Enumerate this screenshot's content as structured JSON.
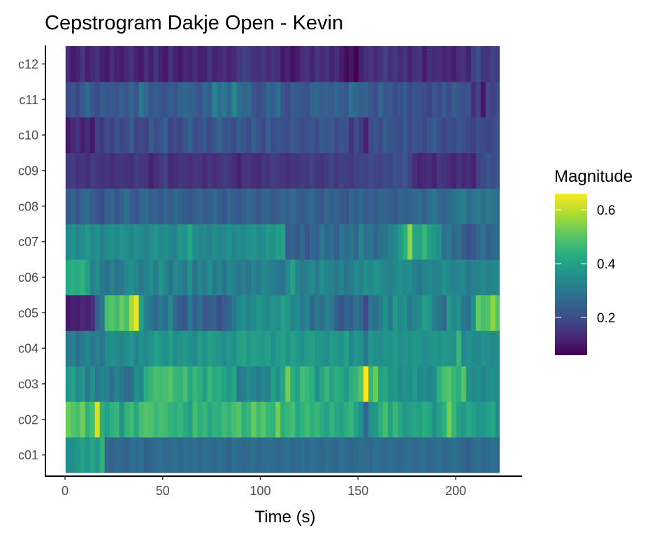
{
  "chart_data": {
    "type": "heatmap",
    "title": "Cepstrogram Dakje Open - Kevin",
    "xlabel": "Time (s)",
    "ylabel": "",
    "xlim": [
      -10,
      234
    ],
    "x_ticks": [
      0,
      50,
      100,
      150,
      200
    ],
    "data_x_range": [
      0.3,
      222.3
    ],
    "frame_step": 2.5,
    "rows": [
      "c01",
      "c02",
      "c03",
      "c04",
      "c05",
      "c06",
      "c07",
      "c08",
      "c09",
      "c10",
      "c11",
      "c12"
    ],
    "grid": false,
    "legend": {
      "title": "Magnitude",
      "position": "right",
      "ticks": [
        0.2,
        0.4,
        0.6
      ],
      "range": [
        0.06,
        0.66
      ],
      "colormap": "viridis"
    },
    "values": {
      "c01": [
        0.35,
        0.36,
        0.38,
        0.4,
        0.37,
        0.42,
        0.38,
        0.45,
        0.26,
        0.25,
        0.27,
        0.26,
        0.25,
        0.28,
        0.27,
        0.28,
        0.25,
        0.26,
        0.27,
        0.28,
        0.26,
        0.27,
        0.28,
        0.26,
        0.28,
        0.27,
        0.28,
        0.26,
        0.28,
        0.27,
        0.26,
        0.28,
        0.27,
        0.25,
        0.28,
        0.27,
        0.26,
        0.27,
        0.28,
        0.26,
        0.27,
        0.28,
        0.27,
        0.26,
        0.27,
        0.28,
        0.26,
        0.27,
        0.28,
        0.26,
        0.28,
        0.27,
        0.26,
        0.28,
        0.27,
        0.26,
        0.28,
        0.27,
        0.26,
        0.27,
        0.28,
        0.27,
        0.26,
        0.28,
        0.27,
        0.26,
        0.28,
        0.27,
        0.26,
        0.27,
        0.28,
        0.26,
        0.27,
        0.28,
        0.26,
        0.27,
        0.28,
        0.26,
        0.27,
        0.28,
        0.27,
        0.26,
        0.24,
        0.27,
        0.28,
        0.26,
        0.27,
        0.28,
        0.27
      ],
      "c02": [
        0.52,
        0.5,
        0.48,
        0.53,
        0.45,
        0.48,
        0.62,
        0.44,
        0.4,
        0.44,
        0.46,
        0.36,
        0.45,
        0.47,
        0.42,
        0.48,
        0.5,
        0.49,
        0.46,
        0.48,
        0.47,
        0.45,
        0.44,
        0.46,
        0.43,
        0.4,
        0.48,
        0.44,
        0.46,
        0.42,
        0.45,
        0.44,
        0.47,
        0.45,
        0.48,
        0.5,
        0.44,
        0.46,
        0.52,
        0.47,
        0.5,
        0.46,
        0.45,
        0.53,
        0.44,
        0.46,
        0.48,
        0.42,
        0.45,
        0.47,
        0.44,
        0.46,
        0.43,
        0.4,
        0.45,
        0.42,
        0.4,
        0.44,
        0.46,
        0.4,
        0.36,
        0.26,
        0.36,
        0.38,
        0.44,
        0.48,
        0.4,
        0.46,
        0.42,
        0.38,
        0.4,
        0.42,
        0.4,
        0.44,
        0.42,
        0.36,
        0.4,
        0.44,
        0.53,
        0.46,
        0.4,
        0.38,
        0.42,
        0.4,
        0.37,
        0.38,
        0.4,
        0.42,
        0.35
      ],
      "c03": [
        0.38,
        0.4,
        0.34,
        0.38,
        0.3,
        0.36,
        0.3,
        0.33,
        0.32,
        0.28,
        0.32,
        0.3,
        0.27,
        0.28,
        0.36,
        0.34,
        0.44,
        0.46,
        0.48,
        0.47,
        0.48,
        0.5,
        0.46,
        0.45,
        0.48,
        0.42,
        0.46,
        0.44,
        0.4,
        0.46,
        0.42,
        0.44,
        0.4,
        0.38,
        0.42,
        0.3,
        0.32,
        0.35,
        0.33,
        0.3,
        0.34,
        0.32,
        0.4,
        0.36,
        0.42,
        0.53,
        0.44,
        0.4,
        0.48,
        0.46,
        0.44,
        0.36,
        0.42,
        0.46,
        0.4,
        0.44,
        0.42,
        0.38,
        0.44,
        0.46,
        0.5,
        0.66,
        0.46,
        0.52,
        0.4,
        0.42,
        0.36,
        0.38,
        0.34,
        0.36,
        0.35,
        0.38,
        0.34,
        0.36,
        0.33,
        0.35,
        0.44,
        0.48,
        0.5,
        0.46,
        0.44,
        0.5,
        0.36,
        0.34,
        0.36,
        0.33,
        0.35,
        0.36,
        0.35
      ],
      "c04": [
        0.3,
        0.32,
        0.28,
        0.31,
        0.33,
        0.3,
        0.32,
        0.29,
        0.35,
        0.36,
        0.34,
        0.33,
        0.35,
        0.38,
        0.33,
        0.36,
        0.34,
        0.37,
        0.4,
        0.38,
        0.36,
        0.39,
        0.35,
        0.37,
        0.38,
        0.36,
        0.34,
        0.39,
        0.36,
        0.4,
        0.38,
        0.37,
        0.35,
        0.38,
        0.36,
        0.4,
        0.41,
        0.38,
        0.4,
        0.39,
        0.38,
        0.4,
        0.36,
        0.39,
        0.41,
        0.37,
        0.4,
        0.38,
        0.36,
        0.39,
        0.4,
        0.38,
        0.37,
        0.35,
        0.39,
        0.38,
        0.36,
        0.4,
        0.33,
        0.37,
        0.36,
        0.3,
        0.38,
        0.36,
        0.35,
        0.37,
        0.36,
        0.38,
        0.35,
        0.37,
        0.36,
        0.38,
        0.37,
        0.35,
        0.36,
        0.38,
        0.36,
        0.38,
        0.37,
        0.36,
        0.46,
        0.34,
        0.36,
        0.35,
        0.34,
        0.36,
        0.35,
        0.34,
        0.35
      ],
      "c05": [
        0.1,
        0.12,
        0.11,
        0.13,
        0.12,
        0.14,
        0.25,
        0.3,
        0.48,
        0.5,
        0.47,
        0.52,
        0.48,
        0.58,
        0.64,
        0.4,
        0.32,
        0.3,
        0.26,
        0.3,
        0.28,
        0.34,
        0.26,
        0.24,
        0.22,
        0.3,
        0.24,
        0.28,
        0.22,
        0.24,
        0.25,
        0.2,
        0.24,
        0.26,
        0.3,
        0.34,
        0.36,
        0.33,
        0.35,
        0.38,
        0.36,
        0.34,
        0.37,
        0.35,
        0.4,
        0.38,
        0.33,
        0.35,
        0.3,
        0.33,
        0.26,
        0.3,
        0.28,
        0.32,
        0.3,
        0.25,
        0.22,
        0.26,
        0.24,
        0.28,
        0.26,
        0.2,
        0.3,
        0.28,
        0.32,
        0.36,
        0.3,
        0.38,
        0.34,
        0.36,
        0.3,
        0.33,
        0.35,
        0.4,
        0.38,
        0.32,
        0.3,
        0.27,
        0.38,
        0.34,
        0.36,
        0.3,
        0.28,
        0.36,
        0.52,
        0.48,
        0.5,
        0.56,
        0.5
      ],
      "c06": [
        0.42,
        0.44,
        0.43,
        0.45,
        0.4,
        0.32,
        0.35,
        0.3,
        0.28,
        0.32,
        0.29,
        0.3,
        0.34,
        0.36,
        0.33,
        0.3,
        0.32,
        0.35,
        0.31,
        0.37,
        0.33,
        0.29,
        0.34,
        0.32,
        0.3,
        0.36,
        0.28,
        0.33,
        0.31,
        0.35,
        0.3,
        0.33,
        0.29,
        0.34,
        0.32,
        0.3,
        0.31,
        0.29,
        0.33,
        0.3,
        0.34,
        0.32,
        0.31,
        0.3,
        0.28,
        0.34,
        0.41,
        0.33,
        0.3,
        0.32,
        0.34,
        0.31,
        0.36,
        0.33,
        0.32,
        0.3,
        0.33,
        0.29,
        0.31,
        0.34,
        0.32,
        0.36,
        0.34,
        0.37,
        0.35,
        0.33,
        0.32,
        0.34,
        0.36,
        0.34,
        0.35,
        0.32,
        0.3,
        0.33,
        0.34,
        0.32,
        0.33,
        0.36,
        0.34,
        0.32,
        0.33,
        0.34,
        0.3,
        0.32,
        0.33,
        0.34,
        0.32,
        0.33,
        0.34
      ],
      "c07": [
        0.34,
        0.36,
        0.33,
        0.35,
        0.38,
        0.34,
        0.36,
        0.32,
        0.35,
        0.36,
        0.34,
        0.37,
        0.35,
        0.33,
        0.36,
        0.34,
        0.32,
        0.35,
        0.37,
        0.34,
        0.36,
        0.33,
        0.32,
        0.38,
        0.36,
        0.42,
        0.35,
        0.33,
        0.34,
        0.32,
        0.35,
        0.33,
        0.34,
        0.36,
        0.33,
        0.35,
        0.34,
        0.36,
        0.37,
        0.34,
        0.35,
        0.38,
        0.36,
        0.39,
        0.4,
        0.24,
        0.26,
        0.23,
        0.27,
        0.22,
        0.26,
        0.25,
        0.3,
        0.26,
        0.28,
        0.24,
        0.29,
        0.27,
        0.3,
        0.26,
        0.33,
        0.28,
        0.3,
        0.26,
        0.28,
        0.3,
        0.32,
        0.34,
        0.38,
        0.44,
        0.56,
        0.42,
        0.4,
        0.46,
        0.4,
        0.38,
        0.36,
        0.28,
        0.3,
        0.26,
        0.28,
        0.24,
        0.21,
        0.22,
        0.26,
        0.28,
        0.24,
        0.26,
        0.27
      ],
      "c08": [
        0.23,
        0.25,
        0.22,
        0.26,
        0.27,
        0.24,
        0.22,
        0.2,
        0.24,
        0.26,
        0.22,
        0.25,
        0.28,
        0.24,
        0.22,
        0.26,
        0.27,
        0.24,
        0.25,
        0.23,
        0.26,
        0.24,
        0.27,
        0.25,
        0.23,
        0.22,
        0.24,
        0.26,
        0.23,
        0.25,
        0.27,
        0.24,
        0.22,
        0.26,
        0.24,
        0.23,
        0.25,
        0.27,
        0.24,
        0.22,
        0.26,
        0.25,
        0.23,
        0.24,
        0.26,
        0.25,
        0.27,
        0.24,
        0.23,
        0.25,
        0.27,
        0.24,
        0.22,
        0.26,
        0.24,
        0.25,
        0.23,
        0.22,
        0.26,
        0.24,
        0.27,
        0.23,
        0.25,
        0.24,
        0.26,
        0.25,
        0.24,
        0.23,
        0.26,
        0.24,
        0.25,
        0.26,
        0.27,
        0.24,
        0.28,
        0.3,
        0.26,
        0.25,
        0.27,
        0.28,
        0.3,
        0.32,
        0.27,
        0.29,
        0.31,
        0.28,
        0.3,
        0.29,
        0.28
      ],
      "c09": [
        0.16,
        0.17,
        0.15,
        0.16,
        0.14,
        0.17,
        0.16,
        0.15,
        0.16,
        0.14,
        0.15,
        0.16,
        0.15,
        0.14,
        0.17,
        0.16,
        0.15,
        0.12,
        0.14,
        0.16,
        0.18,
        0.13,
        0.14,
        0.16,
        0.15,
        0.14,
        0.16,
        0.15,
        0.13,
        0.16,
        0.14,
        0.15,
        0.17,
        0.16,
        0.14,
        0.12,
        0.15,
        0.16,
        0.14,
        0.13,
        0.16,
        0.15,
        0.17,
        0.16,
        0.15,
        0.14,
        0.16,
        0.15,
        0.17,
        0.16,
        0.18,
        0.16,
        0.15,
        0.17,
        0.19,
        0.16,
        0.18,
        0.17,
        0.16,
        0.18,
        0.19,
        0.18,
        0.2,
        0.19,
        0.18,
        0.2,
        0.19,
        0.21,
        0.2,
        0.22,
        0.18,
        0.14,
        0.12,
        0.13,
        0.14,
        0.12,
        0.16,
        0.15,
        0.14,
        0.12,
        0.15,
        0.13,
        0.14,
        0.12,
        0.18,
        0.2,
        0.22,
        0.2,
        0.22
      ],
      "c10": [
        0.1,
        0.13,
        0.15,
        0.11,
        0.14,
        0.1,
        0.18,
        0.16,
        0.2,
        0.18,
        0.22,
        0.19,
        0.2,
        0.24,
        0.18,
        0.2,
        0.18,
        0.24,
        0.2,
        0.22,
        0.25,
        0.18,
        0.2,
        0.19,
        0.22,
        0.25,
        0.2,
        0.21,
        0.23,
        0.2,
        0.22,
        0.26,
        0.21,
        0.22,
        0.2,
        0.24,
        0.22,
        0.2,
        0.25,
        0.22,
        0.19,
        0.24,
        0.2,
        0.22,
        0.21,
        0.2,
        0.23,
        0.22,
        0.2,
        0.21,
        0.22,
        0.2,
        0.24,
        0.22,
        0.23,
        0.2,
        0.22,
        0.21,
        0.15,
        0.2,
        0.17,
        0.12,
        0.2,
        0.22,
        0.2,
        0.24,
        0.22,
        0.21,
        0.2,
        0.23,
        0.2,
        0.22,
        0.21,
        0.19,
        0.22,
        0.24,
        0.21,
        0.19,
        0.21,
        0.2,
        0.22,
        0.21,
        0.2,
        0.18,
        0.21,
        0.2,
        0.19,
        0.2,
        0.21
      ],
      "c11": [
        0.2,
        0.22,
        0.19,
        0.23,
        0.27,
        0.22,
        0.2,
        0.24,
        0.22,
        0.23,
        0.21,
        0.24,
        0.22,
        0.26,
        0.22,
        0.3,
        0.26,
        0.22,
        0.24,
        0.22,
        0.21,
        0.24,
        0.22,
        0.25,
        0.26,
        0.25,
        0.24,
        0.22,
        0.26,
        0.24,
        0.33,
        0.28,
        0.3,
        0.26,
        0.34,
        0.28,
        0.26,
        0.27,
        0.22,
        0.2,
        0.22,
        0.26,
        0.24,
        0.28,
        0.22,
        0.2,
        0.24,
        0.23,
        0.22,
        0.21,
        0.25,
        0.26,
        0.24,
        0.25,
        0.23,
        0.26,
        0.24,
        0.22,
        0.28,
        0.26,
        0.24,
        0.25,
        0.22,
        0.2,
        0.26,
        0.22,
        0.23,
        0.2,
        0.22,
        0.23,
        0.2,
        0.22,
        0.21,
        0.2,
        0.18,
        0.22,
        0.2,
        0.23,
        0.2,
        0.24,
        0.22,
        0.21,
        0.22,
        0.14,
        0.18,
        0.1,
        0.2,
        0.18,
        0.2
      ],
      "c12": [
        0.14,
        0.1,
        0.12,
        0.16,
        0.11,
        0.13,
        0.15,
        0.12,
        0.1,
        0.14,
        0.12,
        0.11,
        0.13,
        0.15,
        0.12,
        0.1,
        0.14,
        0.11,
        0.16,
        0.12,
        0.1,
        0.15,
        0.12,
        0.1,
        0.13,
        0.12,
        0.14,
        0.11,
        0.12,
        0.16,
        0.12,
        0.13,
        0.14,
        0.12,
        0.13,
        0.16,
        0.18,
        0.17,
        0.15,
        0.14,
        0.16,
        0.13,
        0.15,
        0.14,
        0.1,
        0.12,
        0.09,
        0.11,
        0.14,
        0.15,
        0.12,
        0.16,
        0.13,
        0.15,
        0.12,
        0.14,
        0.11,
        0.08,
        0.1,
        0.06,
        0.12,
        0.14,
        0.16,
        0.13,
        0.15,
        0.18,
        0.14,
        0.16,
        0.13,
        0.15,
        0.12,
        0.14,
        0.16,
        0.11,
        0.15,
        0.13,
        0.14,
        0.12,
        0.13,
        0.11,
        0.14,
        0.15,
        0.12,
        0.18,
        0.21,
        0.16,
        0.15,
        0.18,
        0.17
      ]
    }
  }
}
